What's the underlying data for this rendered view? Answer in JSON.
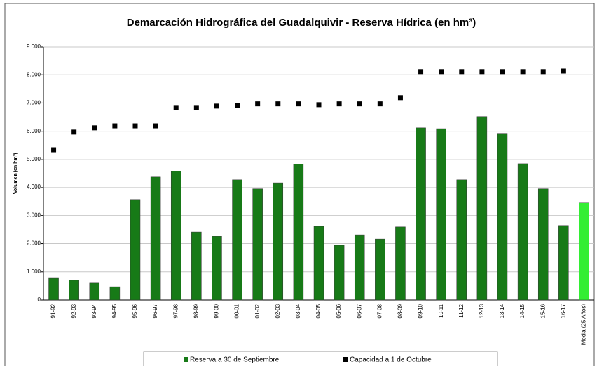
{
  "chart_data": {
    "type": "bar",
    "title": "Demarcación Hidrográfica del Guadalquivir - Reserva Hídrica (en hm³)",
    "y_label": "Volumen (en hm³)",
    "categories": [
      "91-92",
      "92-93",
      "93-94",
      "94-95",
      "95-96",
      "96-97",
      "97-98",
      "98-99",
      "99-00",
      "00-01",
      "01-02",
      "02-03",
      "03-04",
      "04-05",
      "05-06",
      "06-07",
      "07-08",
      "08-09",
      "09-10",
      "10-11",
      "11-12",
      "12-13",
      "13-14",
      "14-15",
      "15-16",
      "16-17",
      "Media (25 Años)"
    ],
    "series": [
      {
        "name": "Reserva a 30 de Septiembre",
        "type": "bar",
        "color": "#177a17",
        "colors": [
          "#177a17",
          "#177a17",
          "#177a17",
          "#177a17",
          "#177a17",
          "#177a17",
          "#177a17",
          "#177a17",
          "#177a17",
          "#177a17",
          "#177a17",
          "#177a17",
          "#177a17",
          "#177a17",
          "#177a17",
          "#177a17",
          "#177a17",
          "#177a17",
          "#177a17",
          "#177a17",
          "#177a17",
          "#177a17",
          "#177a17",
          "#177a17",
          "#177a17",
          "#177a17",
          "#33ee33"
        ],
        "values": [
          770,
          700,
          600,
          470,
          3560,
          4380,
          4580,
          2410,
          2260,
          4280,
          3960,
          4150,
          4830,
          2610,
          1940,
          2310,
          2160,
          2590,
          6120,
          6090,
          4280,
          6520,
          5900,
          4850,
          3960,
          2640,
          3460
        ]
      },
      {
        "name": "Capacidad a 1 de Octubre",
        "type": "scatter",
        "color": "#000000",
        "values": [
          5320,
          5970,
          6120,
          6190,
          6190,
          6190,
          6840,
          6840,
          6890,
          6920,
          6970,
          6970,
          6970,
          6940,
          6970,
          6970,
          6970,
          7190,
          8110,
          8110,
          8110,
          8110,
          8110,
          8110,
          8110,
          8130,
          null
        ]
      }
    ],
    "ylim": [
      0,
      9000
    ],
    "yticks": [
      0,
      {
        "value": 1000,
        "label": "1.000"
      },
      {
        "value": 2000,
        "label": "2.000"
      },
      {
        "value": 3000,
        "label": "3.000"
      },
      {
        "value": 4000,
        "label": "4.000"
      },
      {
        "value": 5000,
        "label": "5.000"
      },
      {
        "value": 6000,
        "label": "6.000"
      },
      {
        "value": 7000,
        "label": "7.000"
      },
      {
        "value": 8000,
        "label": "8.000"
      },
      {
        "value": 9000,
        "label": "9.000"
      }
    ],
    "grid": true,
    "legend": "bottom"
  }
}
